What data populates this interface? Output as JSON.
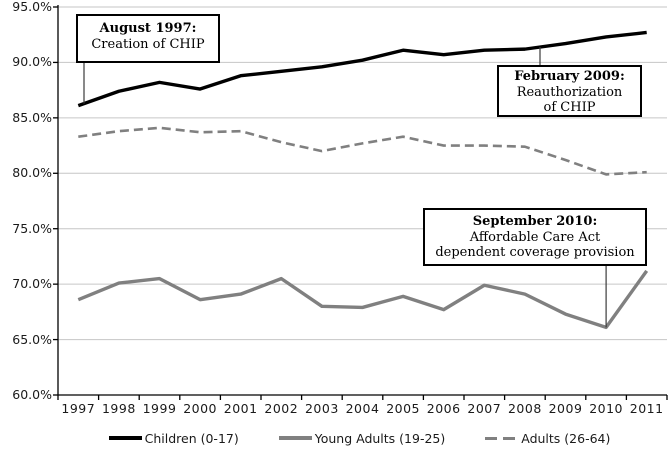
{
  "chart_data": {
    "type": "line",
    "x": [
      1997,
      1998,
      1999,
      2000,
      2001,
      2002,
      2003,
      2004,
      2005,
      2006,
      2007,
      2008,
      2009,
      2010,
      2011
    ],
    "y_tick_labels": [
      "95.0%",
      "90.0%",
      "85.0%",
      "80.0%",
      "75.0%",
      "70.0%",
      "65.0%",
      "60.0%"
    ],
    "ylim": [
      60,
      95
    ],
    "y_step": 5,
    "grid": "horizontal",
    "legend_position": "bottom",
    "xlabel": "",
    "ylabel": "",
    "title": "",
    "series": [
      {
        "name": "Children (0-17)",
        "color": "#000000",
        "style": "solid",
        "values": [
          86.1,
          87.4,
          88.2,
          87.6,
          88.8,
          89.2,
          89.6,
          90.2,
          91.1,
          90.7,
          91.1,
          91.2,
          91.7,
          92.3,
          92.7
        ]
      },
      {
        "name": "Young Adults (19-25)",
        "color": "#808080",
        "style": "solid",
        "values": [
          68.6,
          70.1,
          70.5,
          68.6,
          69.1,
          70.5,
          68.0,
          67.9,
          68.9,
          67.7,
          69.9,
          69.1,
          67.3,
          66.1,
          71.2
        ]
      },
      {
        "name": "Adults (26-64)",
        "color": "#808080",
        "style": "dashed",
        "values": [
          83.3,
          83.8,
          84.1,
          83.7,
          83.8,
          82.8,
          82.0,
          82.7,
          83.3,
          82.5,
          82.5,
          82.4,
          81.2,
          79.9,
          80.1
        ]
      }
    ],
    "annotations": [
      {
        "title": "August 1997:",
        "lines": [
          "Creation of CHIP"
        ],
        "anchor_year": 1997,
        "anchor_series": "Children (0-17)"
      },
      {
        "title": "February 2009:",
        "lines": [
          "Reauthorization",
          "of CHIP"
        ],
        "anchor_year": 2009,
        "anchor_series": "Children (0-17)"
      },
      {
        "title": "September 2010:",
        "lines": [
          "Affordable Care Act",
          "dependent coverage provision"
        ],
        "anchor_year": 2010,
        "anchor_series": "Young Adults (19-25)"
      }
    ],
    "axis_color": "#000000",
    "gridline_color": "#c6c6c6"
  }
}
